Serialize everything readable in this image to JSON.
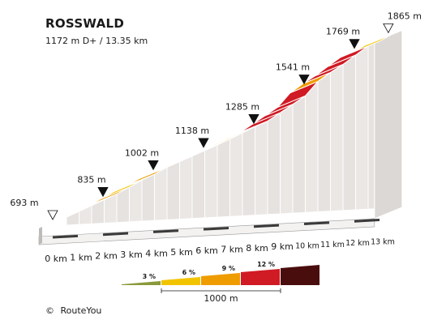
{
  "chart_data": {
    "type": "area",
    "title": "ROSSWALD",
    "subtitle": "1172 m D+ / 13.35 km",
    "km_ticks": [
      "0 km",
      "1 km",
      "2 km",
      "3 km",
      "4 km",
      "5 km",
      "6 km",
      "7 km",
      "8 km",
      "9 km",
      "10 km",
      "11 km",
      "12 km",
      "13 km"
    ],
    "distance_km": [
      0,
      0.5,
      1,
      1.5,
      2,
      2.5,
      3,
      3.5,
      4,
      4.5,
      5,
      5.5,
      6,
      6.5,
      7,
      7.5,
      8,
      8.5,
      9,
      9.5,
      10,
      10.5,
      11,
      11.5,
      12,
      12.5,
      13,
      13.35
    ],
    "elevation_m": [
      693,
      728,
      764,
      800,
      835,
      878,
      922,
      958,
      1002,
      1036,
      1070,
      1104,
      1138,
      1174,
      1212,
      1250,
      1285,
      1338,
      1392,
      1446,
      1541,
      1599,
      1650,
      1710,
      1769,
      1800,
      1845,
      1865
    ],
    "peaks": [
      {
        "km": 0,
        "label": "693 m",
        "marker": "open"
      },
      {
        "km": 2,
        "label": "835 m",
        "marker": "filled"
      },
      {
        "km": 4,
        "label": "1002 m",
        "marker": "filled"
      },
      {
        "km": 6,
        "label": "1138 m",
        "marker": "filled"
      },
      {
        "km": 8,
        "label": "1285 m",
        "marker": "filled"
      },
      {
        "km": 10,
        "label": "1541 m",
        "marker": "filled"
      },
      {
        "km": 12,
        "label": "1769 m",
        "marker": "filled"
      },
      {
        "km": 13.35,
        "label": "1865 m",
        "marker": "open"
      }
    ],
    "segment_grades": [
      "6 %",
      "6 %",
      "6 %",
      "6 %",
      "9 %",
      "6 %",
      "6 %",
      "9 %",
      "6 %",
      "6 %",
      "6 %",
      "9 %",
      "6 %",
      "6 %",
      "9 %",
      "6 %",
      "12 %",
      "12 %",
      "12 %",
      "12 %",
      "9 %",
      "12 %",
      "12 %",
      "12 %",
      "6 %",
      "6 %",
      "3 %"
    ],
    "legend": {
      "items": [
        {
          "label": "3 %",
          "color": "#8a9a3a"
        },
        {
          "label": "6 %",
          "color": "#f2c400"
        },
        {
          "label": "9 %",
          "color": "#ef9c00"
        },
        {
          "label": "12 %",
          "color": "#d01a24"
        },
        {
          "label": "",
          "color": "#4a0d0d"
        }
      ],
      "scale_label": "1000 m"
    },
    "grade_colors": {
      "3 %": "#8a9a3a",
      "6 %": "#f2c400",
      "9 %": "#ef9c00",
      "12 %": "#d01a24",
      "15 %": "#4a0d0d"
    }
  },
  "footer": {
    "copyright": "©",
    "brand": "RouteYou"
  }
}
